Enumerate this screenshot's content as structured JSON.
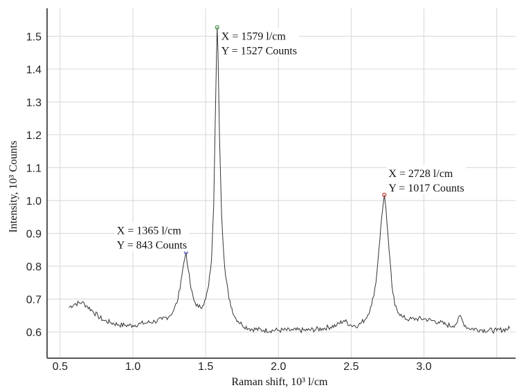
{
  "chart_data": {
    "type": "line",
    "xlabel": "Raman shift, 10³ l/cm",
    "ylabel": "Intensity, 10³ Counts",
    "xlim": [
      0.41,
      3.63
    ],
    "ylim": [
      0.52,
      1.585
    ],
    "grid": true,
    "x_ticks": [
      {
        "value": 0.5,
        "label": "0.5"
      },
      {
        "value": 1.0,
        "label": "1.0"
      },
      {
        "value": 1.5,
        "label": "1.5"
      },
      {
        "value": 2.0,
        "label": "2.0"
      },
      {
        "value": 2.5,
        "label": "2.5"
      },
      {
        "value": 3.0,
        "label": "3.0"
      }
    ],
    "x_gridlines": [
      0.5,
      1.0,
      1.5,
      2.0,
      2.5,
      3.0,
      3.5
    ],
    "y_ticks": [
      {
        "value": 0.6,
        "label": "0.6"
      },
      {
        "value": 0.7,
        "label": "0.7"
      },
      {
        "value": 0.8,
        "label": "0.8"
      },
      {
        "value": 0.9,
        "label": "0.9"
      },
      {
        "value": 1.0,
        "label": "1.0"
      },
      {
        "value": 1.1,
        "label": "1.1"
      },
      {
        "value": 1.2,
        "label": "1.2"
      },
      {
        "value": 1.3,
        "label": "1.3"
      },
      {
        "value": 1.4,
        "label": "1.4"
      },
      {
        "value": 1.5,
        "label": "1.5"
      }
    ],
    "series": [
      {
        "color": "#333333",
        "x": [
          0.56,
          0.6,
          0.65,
          0.68,
          0.72,
          0.76,
          0.8,
          0.85,
          0.9,
          0.95,
          1.0,
          1.05,
          1.1,
          1.15,
          1.2,
          1.25,
          1.28,
          1.31,
          1.33,
          1.35,
          1.365,
          1.38,
          1.4,
          1.42,
          1.45,
          1.48,
          1.5,
          1.52,
          1.54,
          1.555,
          1.565,
          1.575,
          1.579,
          1.585,
          1.595,
          1.61,
          1.63,
          1.66,
          1.7,
          1.75,
          1.8,
          1.9,
          2.0,
          2.1,
          2.2,
          2.3,
          2.4,
          2.45,
          2.5,
          2.55,
          2.6,
          2.64,
          2.67,
          2.69,
          2.71,
          2.72,
          2.728,
          2.74,
          2.76,
          2.78,
          2.8,
          2.85,
          2.9,
          2.95,
          3.0,
          3.05,
          3.1,
          3.15,
          3.2,
          3.23,
          3.25,
          3.27,
          3.3,
          3.4,
          3.5,
          3.59
        ],
        "y": [
          0.675,
          0.685,
          0.69,
          0.68,
          0.665,
          0.648,
          0.635,
          0.628,
          0.622,
          0.62,
          0.62,
          0.625,
          0.628,
          0.632,
          0.638,
          0.648,
          0.665,
          0.7,
          0.755,
          0.81,
          0.843,
          0.79,
          0.73,
          0.695,
          0.675,
          0.68,
          0.7,
          0.74,
          0.82,
          0.98,
          1.22,
          1.45,
          1.527,
          1.45,
          1.2,
          0.95,
          0.8,
          0.7,
          0.645,
          0.622,
          0.61,
          0.605,
          0.605,
          0.605,
          0.605,
          0.61,
          0.62,
          0.635,
          0.62,
          0.62,
          0.64,
          0.68,
          0.75,
          0.85,
          0.95,
          0.99,
          1.017,
          0.97,
          0.85,
          0.74,
          0.68,
          0.645,
          0.638,
          0.64,
          0.64,
          0.635,
          0.63,
          0.622,
          0.618,
          0.63,
          0.65,
          0.628,
          0.612,
          0.606,
          0.604,
          0.61
        ]
      }
    ],
    "annotations": [
      {
        "x": 1.365,
        "y": 0.843,
        "line1": "X = 1365 l/cm",
        "line2": "Y = 843 Counts",
        "marker_color": "#5555cc"
      },
      {
        "x": 1.579,
        "y": 1.527,
        "line1": "X = 1579 l/cm",
        "line2": "Y = 1527 Counts",
        "marker_color": "#2e8b3a"
      },
      {
        "x": 2.728,
        "y": 1.017,
        "line1": "X = 2728 l/cm",
        "line2": "Y = 1017 Counts",
        "marker_color": "#cc3333"
      }
    ]
  }
}
